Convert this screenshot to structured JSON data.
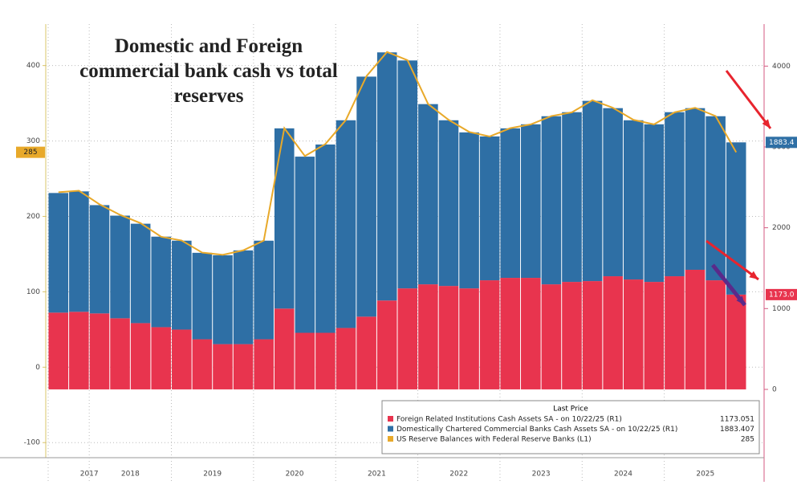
{
  "chart_data": {
    "type": "bar",
    "title": "Domestic and Foreign commercial bank cash vs total reserves",
    "categories": [
      null,
      "2017",
      null,
      "2018",
      null,
      null,
      null,
      "2019",
      null,
      null,
      null,
      "2020",
      null,
      null,
      null,
      "2021",
      null,
      null,
      null,
      "2022",
      null,
      null,
      null,
      "2023",
      null,
      null,
      null,
      "2024",
      null,
      null,
      null,
      "2025",
      null,
      null
    ],
    "series": [
      {
        "name": "Foreign Related Institutions Cash Assets SA -  on 10/22/25  (R1)",
        "color": "#e8344e",
        "axis": "y2",
        "type": "bar",
        "values": [
          950,
          960,
          940,
          880,
          820,
          770,
          740,
          620,
          560,
          560,
          620,
          1000,
          700,
          700,
          760,
          900,
          1100,
          1250,
          1300,
          1280,
          1250,
          1350,
          1380,
          1380,
          1300,
          1330,
          1340,
          1400,
          1360,
          1330,
          1400,
          1480,
          1350,
          1173.051
        ],
        "value_labels": [
          null,
          null,
          null,
          null,
          null,
          null,
          null,
          null,
          null,
          null,
          null,
          null,
          null,
          null,
          null,
          null,
          null,
          null,
          null,
          null,
          null,
          null,
          null,
          null,
          null,
          null,
          null,
          null,
          null,
          null,
          null,
          null,
          null,
          "1173.0"
        ]
      },
      {
        "name": "Domestically Chartered Commercial Banks Cash Assets SA -  on 10/22/25  (R1)",
        "color": "#2e6fa5",
        "axis": "y2",
        "type": "bar",
        "values": [
          1480,
          1490,
          1340,
          1270,
          1230,
          1120,
          1100,
          1070,
          1100,
          1160,
          1220,
          2230,
          2180,
          2330,
          2570,
          2970,
          3070,
          2820,
          2230,
          2050,
          1930,
          1780,
          1850,
          1900,
          2080,
          2100,
          2230,
          2080,
          1970,
          1950,
          2030,
          2000,
          2030,
          1883.407
        ],
        "value_labels": [
          null,
          null,
          null,
          null,
          null,
          null,
          null,
          null,
          null,
          null,
          null,
          null,
          null,
          null,
          null,
          null,
          null,
          null,
          null,
          null,
          null,
          null,
          null,
          null,
          null,
          null,
          null,
          null,
          null,
          null,
          null,
          null,
          null,
          "1883.4"
        ]
      },
      {
        "name": "US Reserve Balances with Federal Reserve Banks  (L1)",
        "color": "#e8a92a",
        "axis": "y",
        "type": "line",
        "values": [
          232,
          234,
          216,
          202,
          191,
          173,
          168,
          152,
          149,
          155,
          168,
          317,
          280,
          296,
          328,
          386,
          418,
          407,
          349,
          328,
          312,
          306,
          317,
          322,
          333,
          338,
          354,
          344,
          328,
          322,
          338,
          344,
          333,
          285
        ]
      }
    ],
    "legend_title": "Last Price",
    "ylim": [
      -120,
      455
    ],
    "yticks": [
      -100,
      0,
      100,
      200,
      300,
      400
    ],
    "y2lim": [
      -845,
      4520
    ],
    "y2ticks": [
      0,
      1000,
      2000,
      3000,
      4000
    ],
    "grid": true
  }
}
